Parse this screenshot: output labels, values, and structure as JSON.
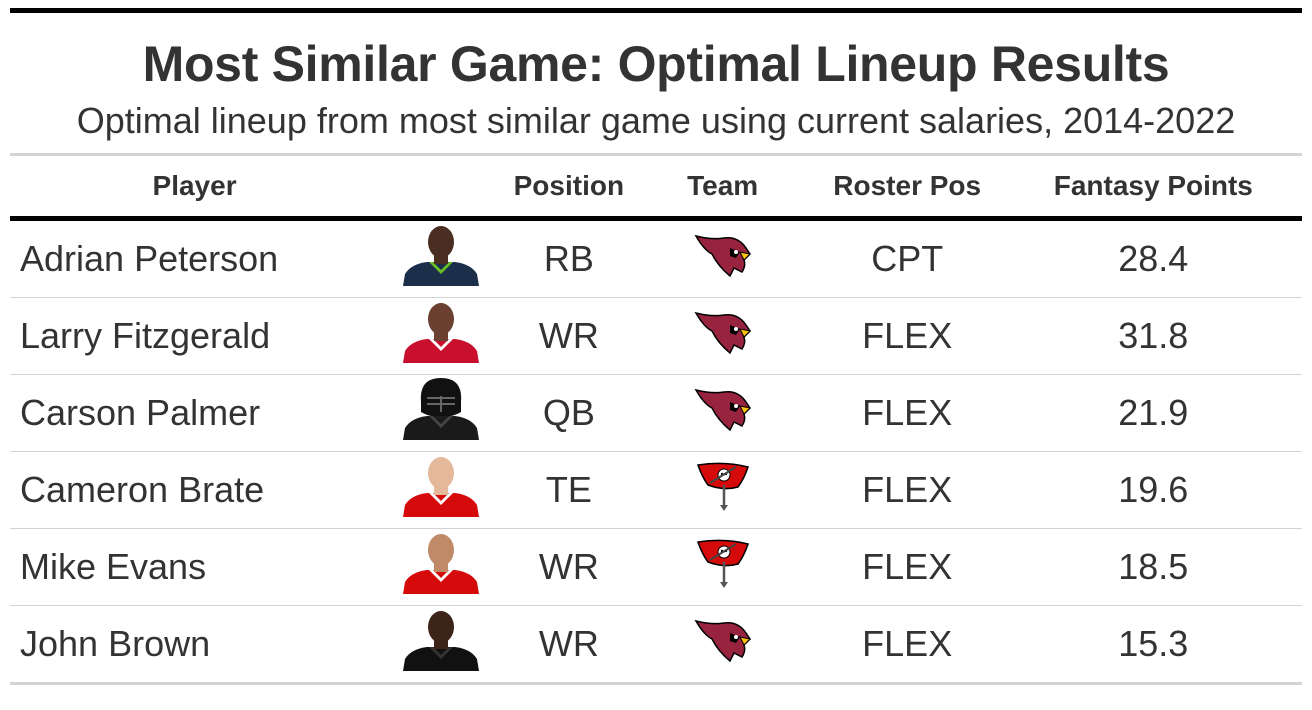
{
  "title": "Most Similar Game: Optimal Lineup Results",
  "subtitle": "Optimal lineup from most similar game using current salaries, 2014-2022",
  "columns": {
    "player": "Player",
    "photo": "",
    "position": "Position",
    "team": "Team",
    "roster_pos": "Roster Pos",
    "fantasy_points": "Fantasy Points"
  },
  "rows": [
    {
      "player": "Adrian Peterson",
      "position": "RB",
      "team_logo": "cardinals-logo",
      "roster_pos": "CPT",
      "fantasy_points": "28.4",
      "headshot": {
        "jersey": "#1b2f4b",
        "trim": "#69be28",
        "skin": "#4a2e22",
        "helmet": false
      }
    },
    {
      "player": "Larry Fitzgerald",
      "position": "WR",
      "team_logo": "cardinals-logo",
      "roster_pos": "FLEX",
      "fantasy_points": "31.8",
      "headshot": {
        "jersey": "#c8102e",
        "trim": "#ffffff",
        "skin": "#6b4030",
        "helmet": false
      }
    },
    {
      "player": "Carson Palmer",
      "position": "QB",
      "team_logo": "cardinals-logo",
      "roster_pos": "FLEX",
      "fantasy_points": "21.9",
      "headshot": {
        "jersey": "#1a1a1a",
        "trim": "#444444",
        "skin": "#222222",
        "helmet": true
      }
    },
    {
      "player": "Cameron Brate",
      "position": "TE",
      "team_logo": "buccaneers-logo",
      "roster_pos": "FLEX",
      "fantasy_points": "19.6",
      "headshot": {
        "jersey": "#d50a0a",
        "trim": "#ffffff",
        "skin": "#e4b89a",
        "helmet": false
      }
    },
    {
      "player": "Mike Evans",
      "position": "WR",
      "team_logo": "buccaneers-logo",
      "roster_pos": "FLEX",
      "fantasy_points": "18.5",
      "headshot": {
        "jersey": "#d50a0a",
        "trim": "#ffffff",
        "skin": "#c08a68",
        "helmet": false
      }
    },
    {
      "player": "John Brown",
      "position": "WR",
      "team_logo": "cardinals-logo",
      "roster_pos": "FLEX",
      "fantasy_points": "15.3",
      "headshot": {
        "jersey": "#111111",
        "trim": "#333333",
        "skin": "#3d2418",
        "helmet": false
      }
    }
  ],
  "colors": {
    "text": "#333333",
    "cardinals_red": "#97233f",
    "buccaneers_red": "#d50a0a",
    "rule": "#000000",
    "divider": "#d3d3d3"
  }
}
